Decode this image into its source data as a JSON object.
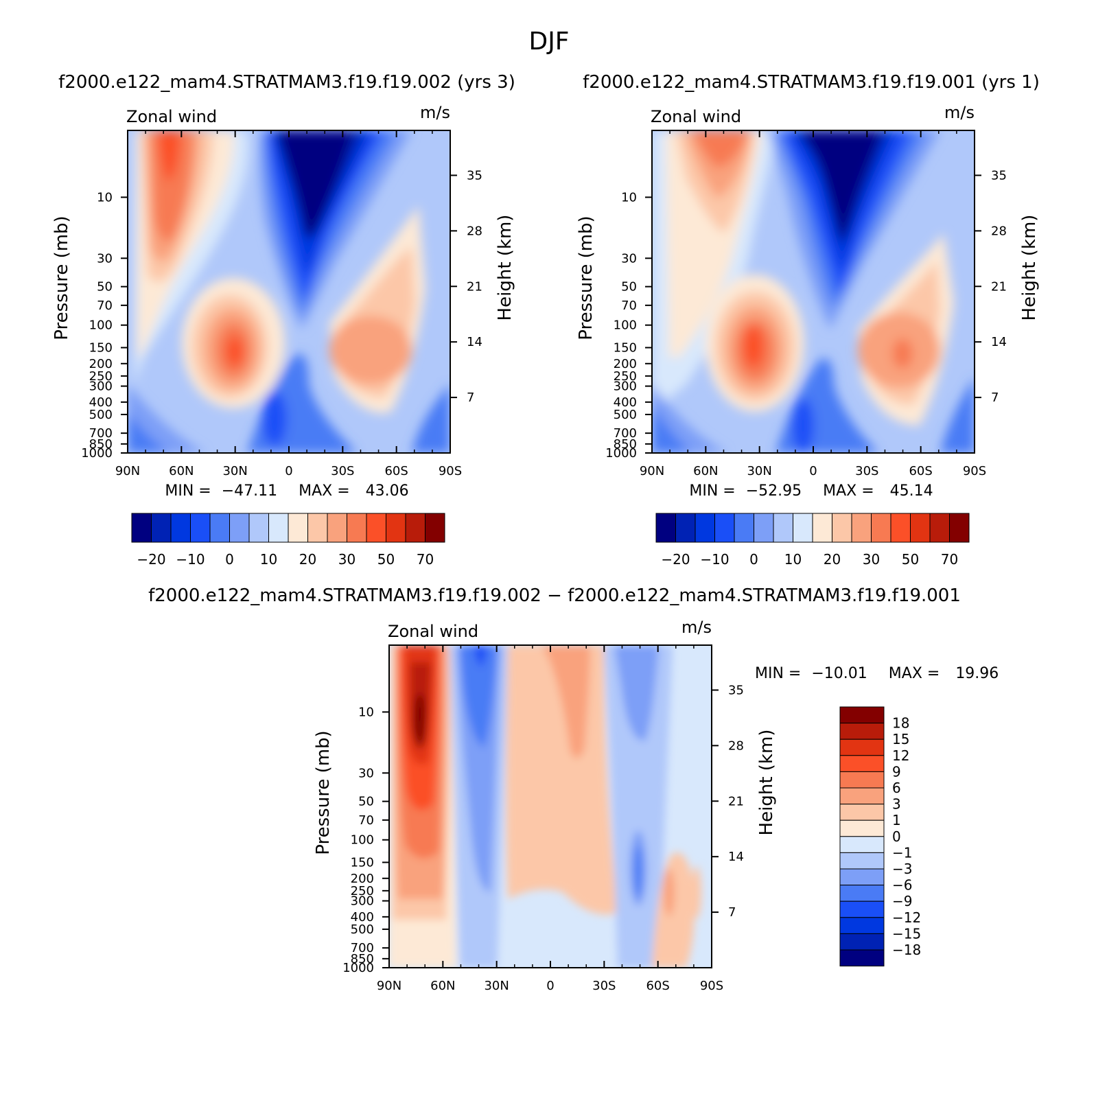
{
  "figure": {
    "title": "DJF"
  },
  "colors": {
    "abs_palette": [
      "#000080",
      "#0022b4",
      "#0038e0",
      "#1a4ff7",
      "#4a7bf5",
      "#7d9ff7",
      "#b0c8fa",
      "#d8e8fc",
      "#fde9d6",
      "#fcc7a8",
      "#f9a27d",
      "#f77a52",
      "#fb5028",
      "#e23412",
      "#b81c0a",
      "#830000"
    ],
    "diff_palette": [
      "#000080",
      "#0022b4",
      "#0038e0",
      "#1a4ff7",
      "#4a7bf5",
      "#7d9ff7",
      "#b0c8fa",
      "#d8e8fc",
      "#fde9d6",
      "#fcc7a8",
      "#f9a27d",
      "#f77a52",
      "#fb5028",
      "#e23412",
      "#b81c0a",
      "#830000"
    ]
  },
  "chart_data": [
    {
      "type": "heatmap",
      "id": "case1",
      "title": "f2000.e122_mam4.STRATMAM3.f19.f19.002 (yrs 3)",
      "left_string": "Zonal wind",
      "right_string": "m/s",
      "xlabel": "",
      "ylabel": "Pressure (mb)",
      "ylabel_right": "Height (km)",
      "x_ticks": [
        "90N",
        "60N",
        "30N",
        "0",
        "30S",
        "60S",
        "90S"
      ],
      "y_ticks": [
        "10",
        "30",
        "50",
        "70",
        "100",
        "150",
        "200",
        "250",
        "300",
        "400",
        "500",
        "700",
        "850",
        "1000"
      ],
      "y_right_ticks": [
        "35",
        "28",
        "21",
        "14",
        "7"
      ],
      "xlim": [
        -90,
        90
      ],
      "ylim_mb": [
        1000,
        3
      ],
      "stats": {
        "min_label": "MIN =",
        "min": "−47.11",
        "max_label": "MAX =",
        "max": "43.06"
      },
      "colorbar_labels": [
        "−20",
        "−10",
        "0",
        "10",
        "20",
        "30",
        "50",
        "70"
      ],
      "features": [
        {
          "lat": 68,
          "p": 10,
          "value": 35
        },
        {
          "lat": 30,
          "p": 200,
          "value": 43
        },
        {
          "lat": -15,
          "p": 8,
          "value": -47
        },
        {
          "lat": -50,
          "p": 200,
          "value": 25
        }
      ]
    },
    {
      "type": "heatmap",
      "id": "case2",
      "title": "f2000.e122_mam4.STRATMAM3.f19.f19.001 (yrs 1)",
      "left_string": "Zonal wind",
      "right_string": "m/s",
      "xlabel": "",
      "ylabel": "Pressure (mb)",
      "ylabel_right": "Height (km)",
      "x_ticks": [
        "90N",
        "60N",
        "30N",
        "0",
        "30S",
        "60S",
        "90S"
      ],
      "y_ticks": [
        "10",
        "30",
        "50",
        "70",
        "100",
        "150",
        "200",
        "250",
        "300",
        "400",
        "500",
        "700",
        "850",
        "1000"
      ],
      "y_right_ticks": [
        "35",
        "28",
        "21",
        "14",
        "7"
      ],
      "xlim": [
        -90,
        90
      ],
      "ylim_mb": [
        1000,
        3
      ],
      "stats": {
        "min_label": "MIN =",
        "min": "−52.95",
        "max_label": "MAX =",
        "max": "45.14"
      },
      "colorbar_labels": [
        "−20",
        "−10",
        "0",
        "10",
        "20",
        "30",
        "50",
        "70"
      ],
      "features": [
        {
          "lat": 55,
          "p": 5,
          "value": 22
        },
        {
          "lat": 30,
          "p": 200,
          "value": 45
        },
        {
          "lat": -15,
          "p": 10,
          "value": -53
        },
        {
          "lat": -52,
          "p": 200,
          "value": 45
        }
      ]
    },
    {
      "type": "heatmap",
      "id": "diff",
      "title": "f2000.e122_mam4.STRATMAM3.f19.f19.002 − f2000.e122_mam4.STRATMAM3.f19.f19.001",
      "left_string": "Zonal wind",
      "right_string": "m/s",
      "xlabel": "",
      "ylabel": "Pressure (mb)",
      "ylabel_right": "Height (km)",
      "x_ticks": [
        "90N",
        "60N",
        "30N",
        "0",
        "30S",
        "60S",
        "90S"
      ],
      "y_ticks": [
        "10",
        "30",
        "50",
        "70",
        "100",
        "150",
        "200",
        "250",
        "300",
        "400",
        "500",
        "700",
        "850",
        "1000"
      ],
      "y_right_ticks": [
        "35",
        "28",
        "21",
        "14",
        "7"
      ],
      "xlim": [
        -90,
        90
      ],
      "ylim_mb": [
        1000,
        3
      ],
      "stats": {
        "min_label": "MIN =",
        "min": "−10.01",
        "max_label": "MAX =",
        "max": "19.96"
      },
      "colorbar_labels": [
        "18",
        "15",
        "12",
        "9",
        "6",
        "3",
        "1",
        "0",
        "−1",
        "−3",
        "−6",
        "−9",
        "−12",
        "−15",
        "−18"
      ],
      "features": [
        {
          "lat": 72,
          "p": 25,
          "value": 20
        },
        {
          "lat": 40,
          "p": 10,
          "value": -8
        },
        {
          "lat": -18,
          "p": 20,
          "value": 6
        },
        {
          "lat": -50,
          "p": 10,
          "value": -7
        }
      ]
    }
  ]
}
